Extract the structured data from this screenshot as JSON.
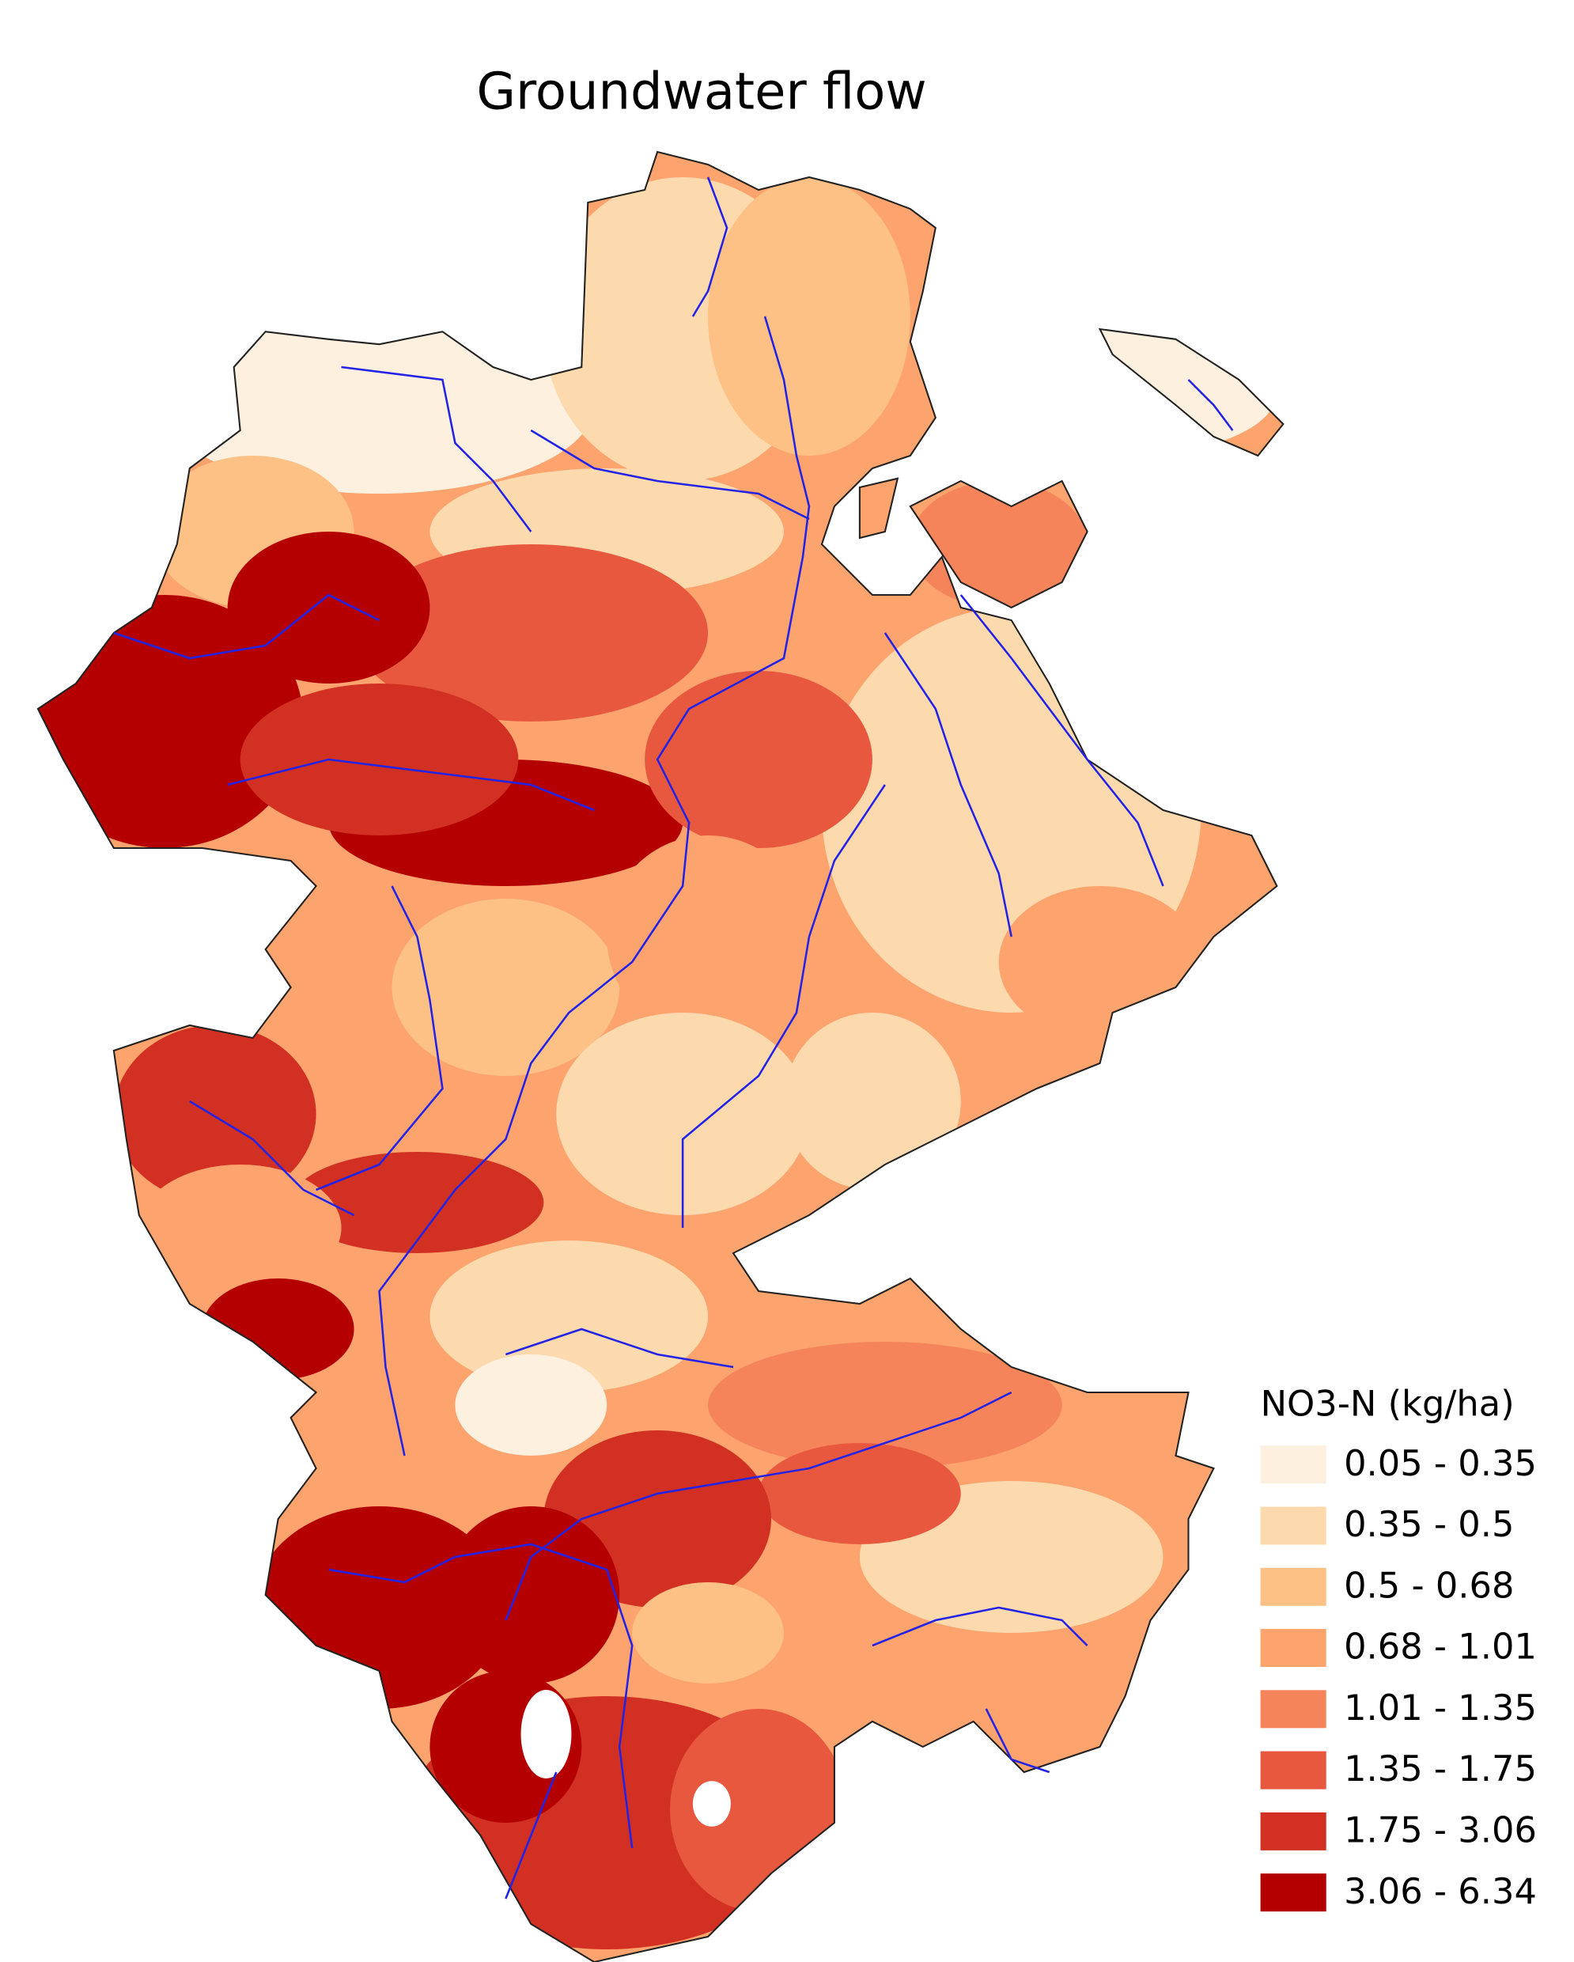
{
  "title": "Groundwater flow",
  "legend": {
    "title": "NO3-N (kg/ha)",
    "items": [
      {
        "label": "0.05 - 0.35",
        "color": "#fef0df"
      },
      {
        "label": "0.35 - 0.5",
        "color": "#fddaae"
      },
      {
        "label": "0.5 - 0.68",
        "color": "#fdc085"
      },
      {
        "label": "0.68 - 1.01",
        "color": "#fca36e"
      },
      {
        "label": "1.01 - 1.35",
        "color": "#f6845a"
      },
      {
        "label": "1.35 - 1.75",
        "color": "#e8583f"
      },
      {
        "label": "1.75 - 3.06",
        "color": "#d13022"
      },
      {
        "label": "3.06 - 6.34",
        "color": "#b40000"
      }
    ]
  }
}
